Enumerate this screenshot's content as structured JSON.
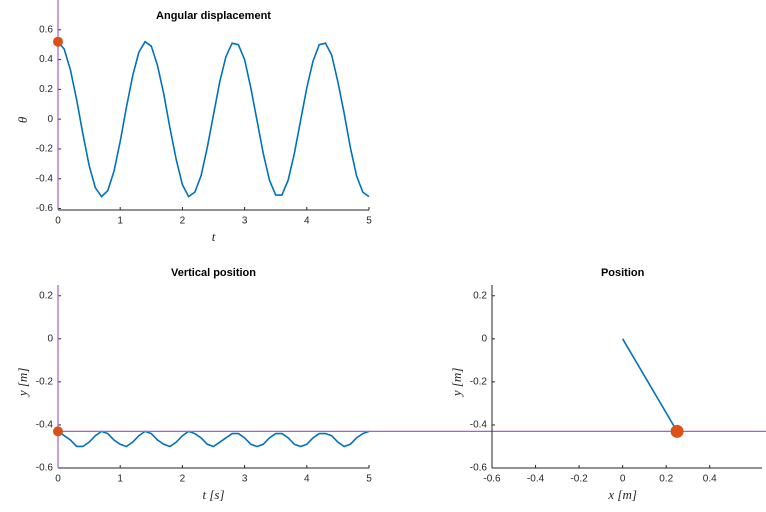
{
  "chart_data": [
    {
      "type": "line",
      "title": "Angular displacement",
      "xlabel": "t",
      "ylabel": "θ",
      "xlim": [
        0,
        5
      ],
      "ylim": [
        -0.61,
        0.8
      ],
      "xticks": [
        0,
        1,
        2,
        3,
        4,
        5
      ],
      "yticks": [
        -0.6,
        -0.4,
        -0.2,
        0,
        0.2,
        0.4,
        0.6
      ],
      "color": "#0072bd",
      "marker_color": "#d95319",
      "cursor": "vertical",
      "cursor_color": "#a55fd6",
      "x": [
        0,
        0.1,
        0.2,
        0.3,
        0.4,
        0.5,
        0.6,
        0.7,
        0.8,
        0.9,
        1,
        1.1,
        1.2,
        1.3,
        1.4,
        1.5,
        1.6,
        1.7,
        1.8,
        1.9,
        2,
        2.1,
        2.2,
        2.3,
        2.4,
        2.5,
        2.6,
        2.7,
        2.8,
        2.9,
        3,
        3.1,
        3.2,
        3.3,
        3.4,
        3.5,
        3.6,
        3.7,
        3.8,
        3.9,
        4,
        4.1,
        4.2,
        4.3,
        4.4,
        4.5,
        4.6,
        4.7,
        4.8,
        4.9,
        5
      ],
      "values": [
        0.52,
        0.47,
        0.33,
        0.13,
        -0.1,
        -0.31,
        -0.46,
        -0.52,
        -0.48,
        -0.35,
        -0.15,
        0.08,
        0.29,
        0.45,
        0.52,
        0.49,
        0.36,
        0.17,
        -0.06,
        -0.27,
        -0.44,
        -0.52,
        -0.49,
        -0.38,
        -0.19,
        0.03,
        0.25,
        0.42,
        0.51,
        0.5,
        0.4,
        0.21,
        -0.01,
        -0.23,
        -0.41,
        -0.51,
        -0.51,
        -0.41,
        -0.23,
        -0.01,
        0.21,
        0.39,
        0.5,
        0.51,
        0.43,
        0.25,
        0.04,
        -0.19,
        -0.38,
        -0.49,
        -0.52
      ],
      "marker": {
        "x": 0,
        "y": 0.52
      }
    },
    {
      "type": "line",
      "title": "Vertical position",
      "xlabel": "t [s]",
      "ylabel": "y [m]",
      "xlim": [
        0,
        5
      ],
      "ylim": [
        -0.6,
        0.25
      ],
      "xticks": [
        0,
        1,
        2,
        3,
        4,
        5
      ],
      "yticks": [
        -0.6,
        -0.4,
        -0.2,
        0,
        0.2
      ],
      "color": "#0072bd",
      "marker_color": "#d95319",
      "cursor": "both",
      "cursor_color": "#a55fd6",
      "x": [
        0,
        0.1,
        0.2,
        0.3,
        0.4,
        0.5,
        0.6,
        0.7,
        0.8,
        0.9,
        1,
        1.1,
        1.2,
        1.3,
        1.4,
        1.5,
        1.6,
        1.7,
        1.8,
        1.9,
        2,
        2.1,
        2.2,
        2.3,
        2.4,
        2.5,
        2.6,
        2.7,
        2.8,
        2.9,
        3,
        3.1,
        3.2,
        3.3,
        3.4,
        3.5,
        3.6,
        3.7,
        3.8,
        3.9,
        4,
        4.1,
        4.2,
        4.3,
        4.4,
        4.5,
        4.6,
        4.7,
        4.8,
        4.9,
        5
      ],
      "values": [
        -0.43,
        -0.45,
        -0.47,
        -0.5,
        -0.5,
        -0.48,
        -0.45,
        -0.43,
        -0.44,
        -0.47,
        -0.49,
        -0.5,
        -0.48,
        -0.45,
        -0.43,
        -0.44,
        -0.47,
        -0.49,
        -0.5,
        -0.48,
        -0.45,
        -0.43,
        -0.44,
        -0.46,
        -0.49,
        -0.5,
        -0.48,
        -0.46,
        -0.44,
        -0.44,
        -0.46,
        -0.49,
        -0.5,
        -0.49,
        -0.46,
        -0.44,
        -0.44,
        -0.46,
        -0.49,
        -0.5,
        -0.49,
        -0.46,
        -0.44,
        -0.44,
        -0.45,
        -0.48,
        -0.5,
        -0.49,
        -0.46,
        -0.44,
        -0.43
      ],
      "marker": {
        "x": 0,
        "y": -0.43
      }
    },
    {
      "type": "line",
      "title": "Position",
      "xlabel": "x [m]",
      "ylabel": "y [m]",
      "xlim": [
        -0.6,
        0.64
      ],
      "ylim": [
        -0.6,
        0.25
      ],
      "xticks": [
        -0.6,
        -0.4,
        -0.2,
        0,
        0.2,
        0.4
      ],
      "yticks": [
        -0.6,
        -0.4,
        -0.2,
        0,
        0.2
      ],
      "color": "#0072bd",
      "marker_color": "#d95319",
      "x": [
        0,
        0.25
      ],
      "values": [
        0,
        -0.43
      ],
      "marker": {
        "x": 0.25,
        "y": -0.43
      }
    }
  ]
}
